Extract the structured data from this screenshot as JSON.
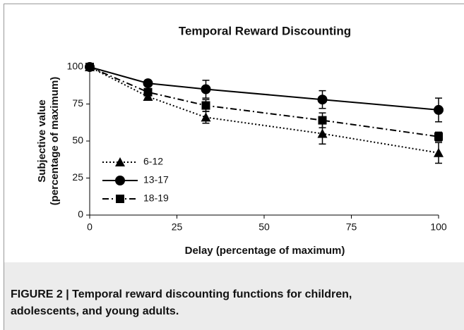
{
  "chart_data": {
    "type": "line",
    "title": "Temporal Reward Discounting",
    "xlabel": "Delay (percentage of maximum)",
    "ylabel": [
      "Subjective value",
      "(percentage of maximum)"
    ],
    "x": [
      0,
      16.7,
      33.3,
      66.7,
      100
    ],
    "series": [
      {
        "name": "6-12",
        "color": "#000000",
        "marker": "triangle",
        "linestyle": "dotted",
        "values": [
          100,
          80,
          66,
          55,
          42
        ],
        "errors": [
          0,
          1,
          4,
          7,
          7
        ]
      },
      {
        "name": "13-17",
        "color": "#000000",
        "marker": "circle",
        "linestyle": "solid",
        "values": [
          100,
          89,
          85,
          78,
          71
        ],
        "errors": [
          0,
          2,
          6,
          6,
          8
        ]
      },
      {
        "name": "18-19",
        "color": "#000000",
        "marker": "square",
        "linestyle": "dashdot",
        "values": [
          100,
          83,
          74,
          64,
          53
        ],
        "errors": [
          0,
          2,
          4,
          5,
          3
        ]
      }
    ],
    "xlim": [
      0,
      100
    ],
    "xticks": [
      0,
      25,
      50,
      75,
      100
    ],
    "ylim": [
      0,
      100
    ],
    "yticks": [
      0,
      25,
      50,
      75,
      100
    ],
    "legend": "lower left",
    "caption": [
      "FIGURE 2 | Temporal reward discounting functions for children,",
      "adolescents, and young adults."
    ]
  }
}
